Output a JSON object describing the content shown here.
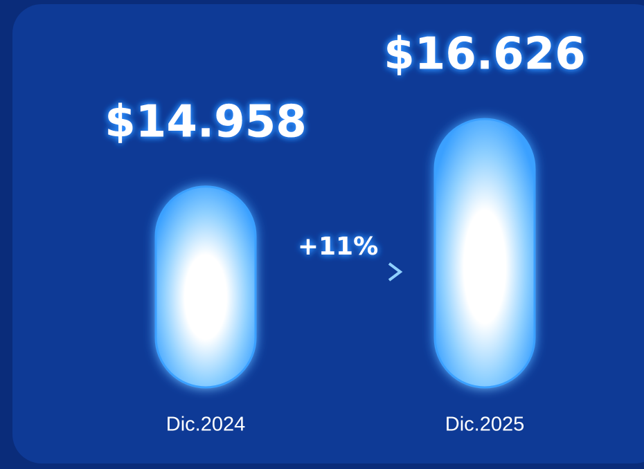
{
  "chart_data": {
    "type": "bar",
    "categories": [
      "Dic.2024",
      "Dic.2025"
    ],
    "values": [
      14958,
      16626
    ],
    "value_labels": [
      "$14.958",
      "$16.626"
    ],
    "color": "#3aa0ff",
    "ylim": [
      10000,
      17500
    ],
    "annotation": "+11%"
  }
}
